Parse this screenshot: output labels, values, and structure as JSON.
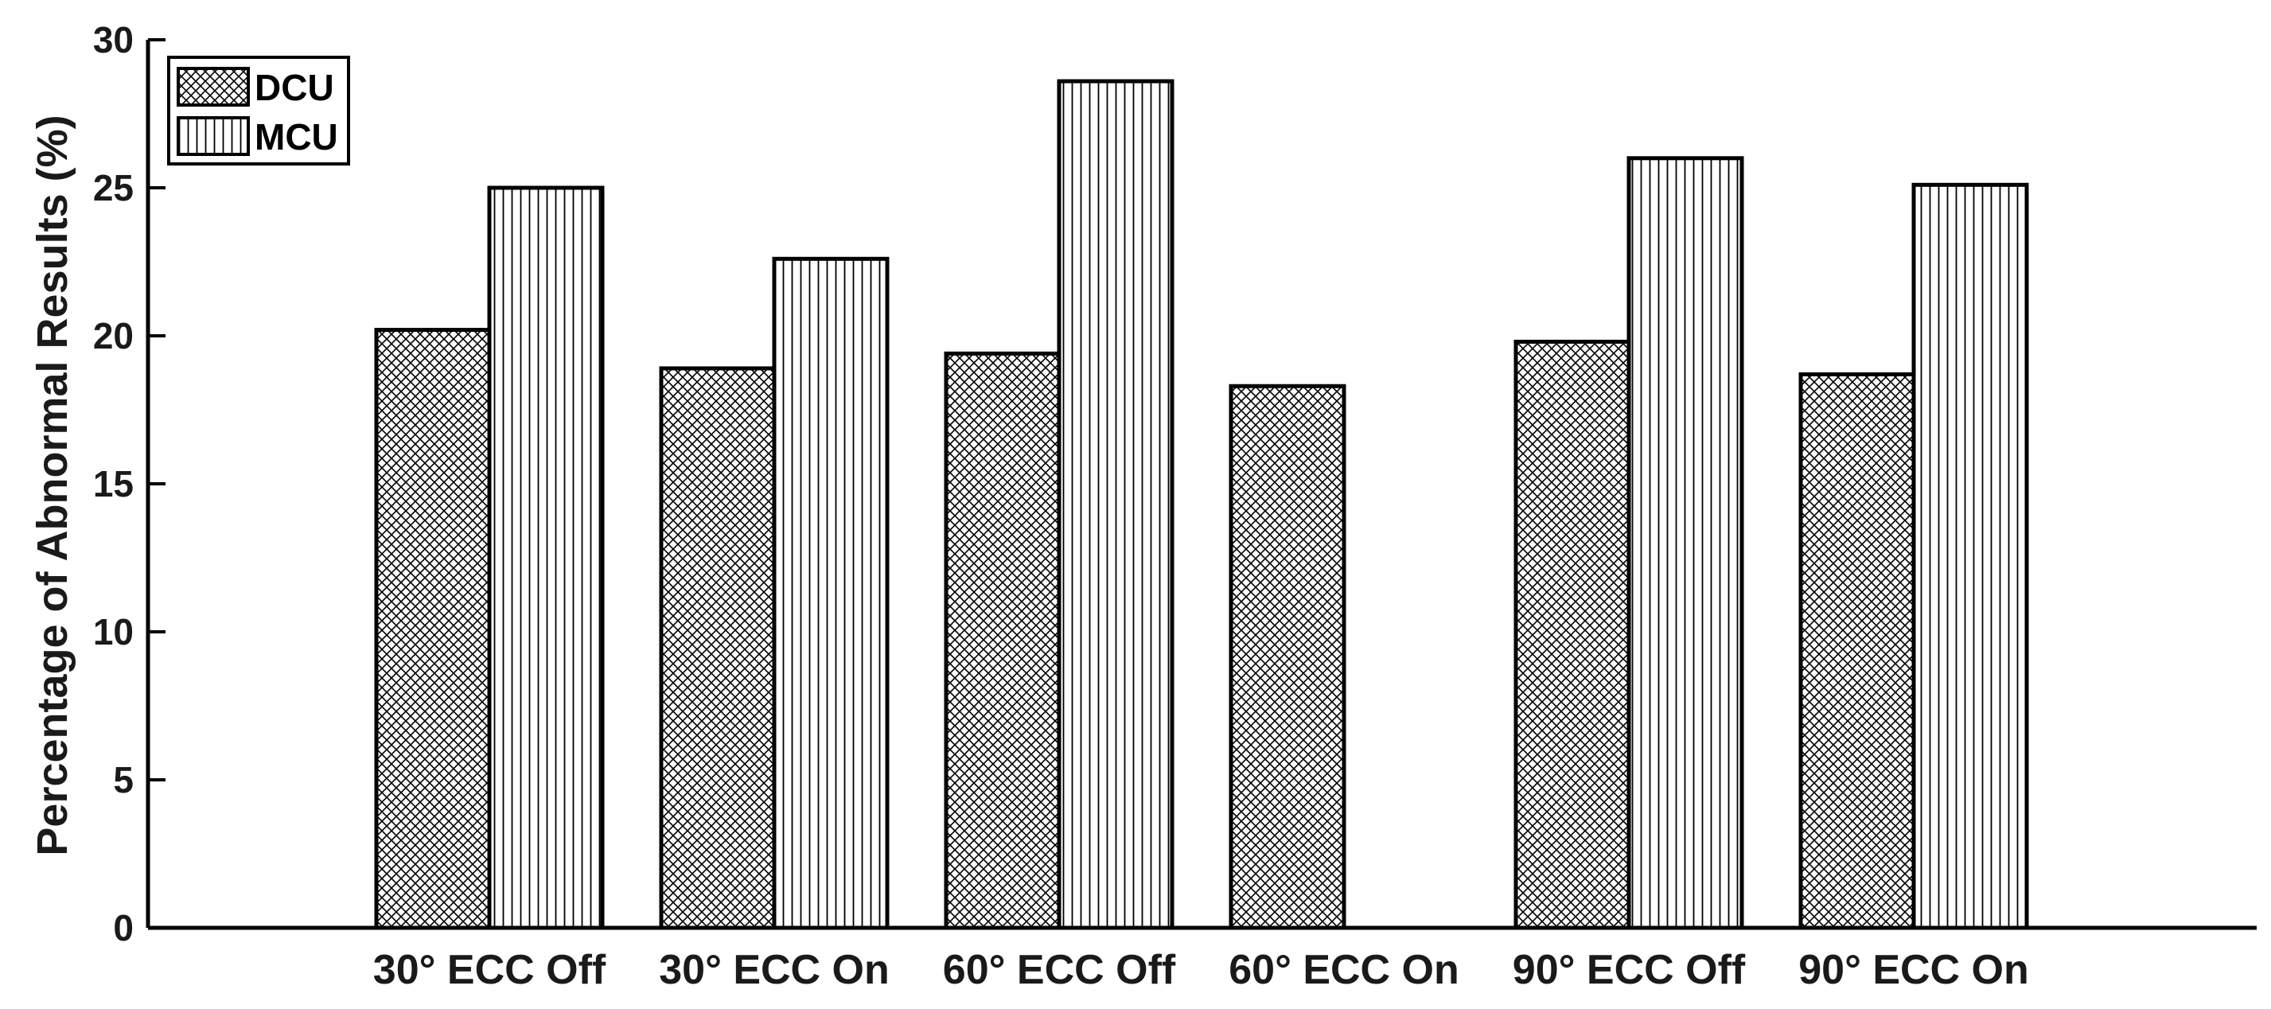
{
  "chart_data": {
    "type": "bar",
    "title": "",
    "xlabel": "",
    "ylabel": "Percentage of Abnormal Results (%)",
    "ylim": [
      0,
      30
    ],
    "yticks": [
      0,
      5,
      10,
      15,
      20,
      25,
      30
    ],
    "categories": [
      "30° ECC Off",
      "30° ECC On",
      "60° ECC Off",
      "60° ECC On",
      "90° ECC Off",
      "90° ECC On"
    ],
    "series": [
      {
        "name": "DCU",
        "pattern": "crosshatch",
        "values": [
          20.2,
          18.9,
          19.4,
          18.3,
          19.8,
          18.7
        ]
      },
      {
        "name": "MCU",
        "pattern": "vertical-lines",
        "values": [
          25.0,
          22.6,
          28.6,
          null,
          26.0,
          25.1
        ]
      }
    ],
    "legend": {
      "position": "top-left"
    },
    "grid": false,
    "colors": {
      "bar_fill": "#ffffff",
      "pattern": "#000000",
      "axis": "#000000"
    }
  }
}
